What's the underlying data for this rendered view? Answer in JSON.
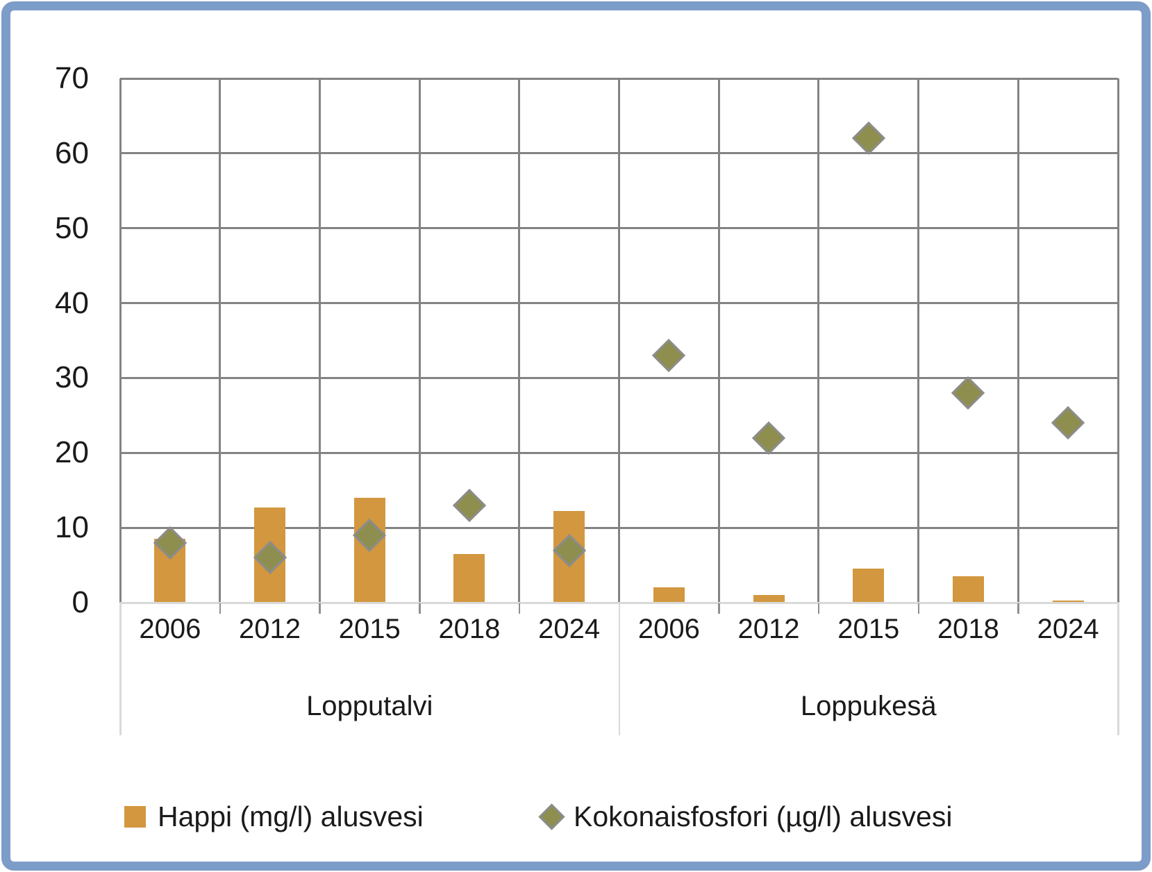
{
  "chart_data": {
    "type": "combo",
    "title": "",
    "ylim": [
      0,
      70
    ],
    "yticks": [
      0,
      10,
      20,
      30,
      40,
      50,
      60,
      70
    ],
    "grid": "both",
    "legend_position": "bottom",
    "groups": [
      {
        "label": "Lopputalvi",
        "categories": [
          "2006",
          "2012",
          "2015",
          "2018",
          "2024"
        ]
      },
      {
        "label": "Loppukesä",
        "categories": [
          "2006",
          "2012",
          "2015",
          "2018",
          "2024"
        ]
      }
    ],
    "series": [
      {
        "name": "Happi (mg/l) alusvesi",
        "type": "bar",
        "color": "#D2973F",
        "values": [
          8.5,
          12.7,
          14,
          6.5,
          12.2,
          2,
          1,
          4.5,
          3.5,
          0.3
        ]
      },
      {
        "name": "Kokonaisfosfori (µg/l) alusvesi",
        "type": "scatter",
        "marker": "diamond",
        "color": "#8E8E4F",
        "marker_border": "#8C8C8C",
        "values": [
          8,
          6,
          9,
          13,
          7,
          33,
          22,
          62,
          28,
          24
        ]
      }
    ],
    "colors": {
      "grid": "#838383",
      "axis_line": "#D9D9D9",
      "frame_border": "#7C9CC9",
      "text": "#1A1A1A"
    }
  }
}
